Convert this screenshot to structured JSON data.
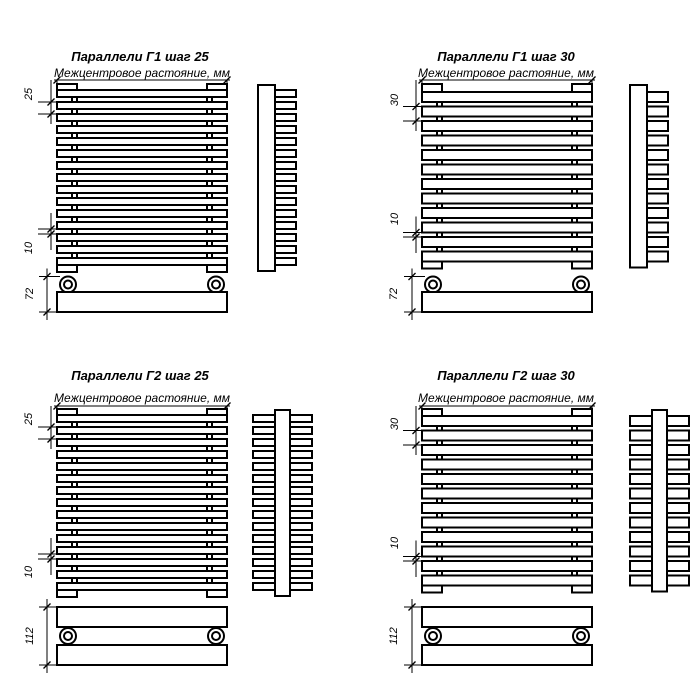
{
  "page": {
    "background": "#ffffff",
    "ink": "#000000",
    "kind": "towel-rail technical drawing, 4 variants"
  },
  "quadrants": [
    {
      "id": "g1-step-25",
      "position": "top-left",
      "title": "Параллели Г1 шаг 25",
      "subtitle": "Межцентровое растояние, мм",
      "variant": "Г1",
      "tube_count": 15,
      "dimensions": {
        "step": "25",
        "gap": "10",
        "depth": "72"
      }
    },
    {
      "id": "g1-step-30",
      "position": "top-right",
      "title": "Параллели Г1 шаг 30",
      "subtitle": "Межцентровое растояние, мм",
      "variant": "Г1",
      "tube_count": 12,
      "dimensions": {
        "step": "30",
        "gap": "10",
        "depth": "72"
      }
    },
    {
      "id": "g2-step-25",
      "position": "bottom-left",
      "title": "Параллели Г2 шаг 25",
      "subtitle": "Межцентровое растояние, мм",
      "variant": "Г2",
      "tube_count": 15,
      "dimensions": {
        "step": "25",
        "gap": "10",
        "depth": "112"
      }
    },
    {
      "id": "g2-step-30",
      "position": "bottom-right",
      "title": "Параллели Г2 шаг 30",
      "subtitle": "Межцентровое растояние, мм",
      "variant": "Г2",
      "tube_count": 12,
      "dimensions": {
        "step": "30",
        "gap": "10",
        "depth": "112"
      }
    }
  ]
}
